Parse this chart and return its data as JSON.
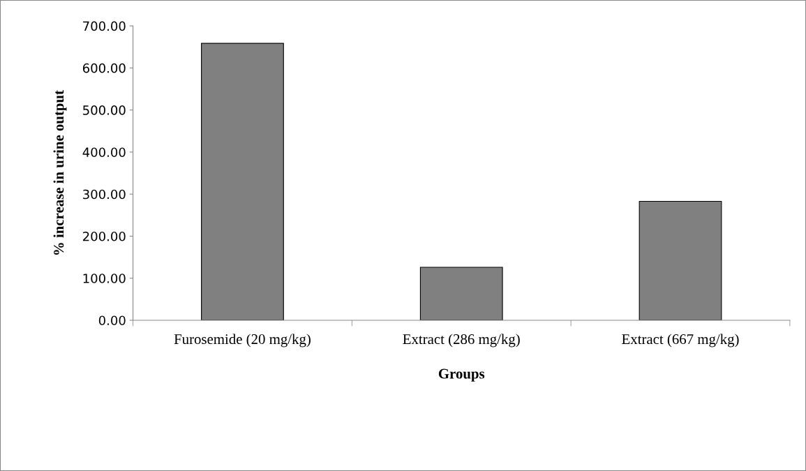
{
  "chart_data": {
    "type": "bar",
    "xlabel": "Groups",
    "ylabel": "% increase in urine output",
    "categories": [
      "Furosemide (20 mg/kg)",
      "Extract (286 mg/kg)",
      "Extract (667 mg/kg)"
    ],
    "values": [
      658.5,
      126,
      283
    ],
    "color": "#808080",
    "ylim": [
      0,
      700
    ],
    "yticks": [
      {
        "value": 0,
        "label": "0.00"
      },
      {
        "value": 100,
        "label": "100.00"
      },
      {
        "value": 200,
        "label": "200.00"
      },
      {
        "value": 300,
        "label": "300.00"
      },
      {
        "value": 400,
        "label": "400.00"
      },
      {
        "value": 500,
        "label": "500.00"
      },
      {
        "value": 600,
        "label": "600.00"
      },
      {
        "value": 700,
        "label": "700.00"
      }
    ],
    "grid": false,
    "legend": false
  }
}
